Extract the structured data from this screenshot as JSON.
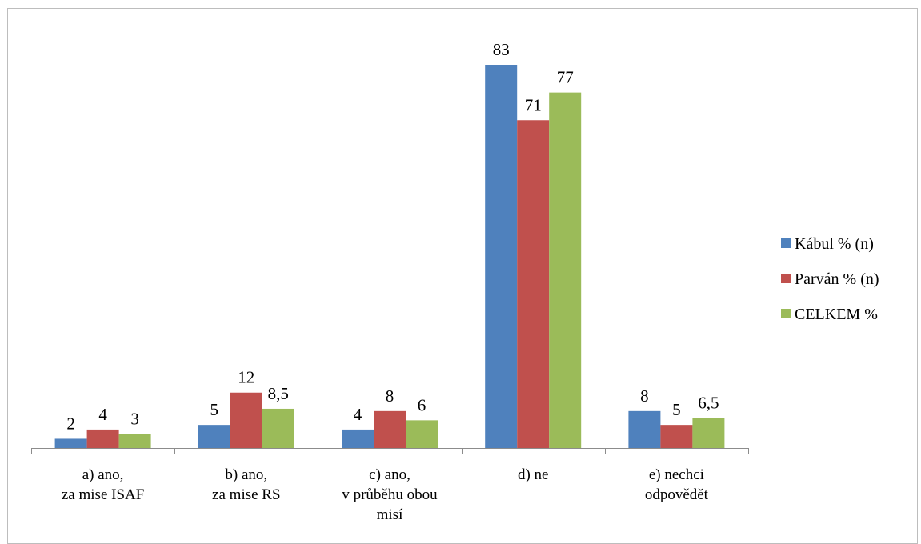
{
  "chart_data": {
    "type": "bar",
    "title": "",
    "xlabel": "",
    "ylabel": "",
    "ylim": [
      0,
      90
    ],
    "grid": false,
    "legend_position": "right",
    "categories": [
      [
        "a) ano,",
        "za mise ISAF"
      ],
      [
        "b) ano,",
        "za mise RS"
      ],
      [
        "c) ano,",
        "v průběhu obou",
        "misí"
      ],
      [
        "d) ne"
      ],
      [
        "e) nechci",
        "odpovědět"
      ]
    ],
    "series": [
      {
        "name": "Kábul % (n)",
        "color": "#4f81bd",
        "values": [
          2,
          5,
          4,
          83,
          8
        ],
        "labels": [
          "2",
          "5",
          "4",
          "83",
          "8"
        ]
      },
      {
        "name": "Parván % (n)",
        "color": "#c0504d",
        "values": [
          4,
          12,
          8,
          71,
          5
        ],
        "labels": [
          "4",
          "12",
          "8",
          "71",
          "5"
        ]
      },
      {
        "name": "CELKEM %",
        "color": "#9bbb59",
        "values": [
          3,
          8.5,
          6,
          77,
          6.5
        ],
        "labels": [
          "3",
          "8,5",
          "6",
          "77",
          "6,5"
        ]
      }
    ]
  }
}
